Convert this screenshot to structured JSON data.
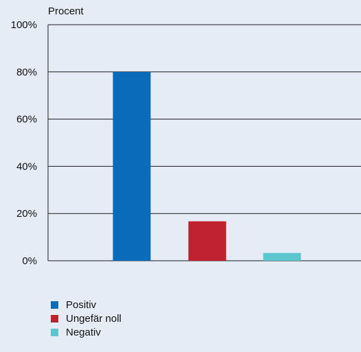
{
  "chart_data": {
    "type": "bar",
    "title": "",
    "ylabel": "Procent",
    "xlabel": "",
    "ylim": [
      0,
      100
    ],
    "yticks": [
      0,
      20,
      40,
      60,
      80,
      100
    ],
    "ytick_labels": [
      "0%",
      "20%",
      "40%",
      "60%",
      "80%",
      "100%"
    ],
    "grid": true,
    "legend_position": "bottom-left",
    "categories": [
      "Positiv",
      "Ungefär noll",
      "Negativ"
    ],
    "values": [
      80,
      16.7,
      3.3
    ],
    "colors": [
      "#0a6bb8",
      "#c0212f",
      "#5bc6d0"
    ]
  }
}
